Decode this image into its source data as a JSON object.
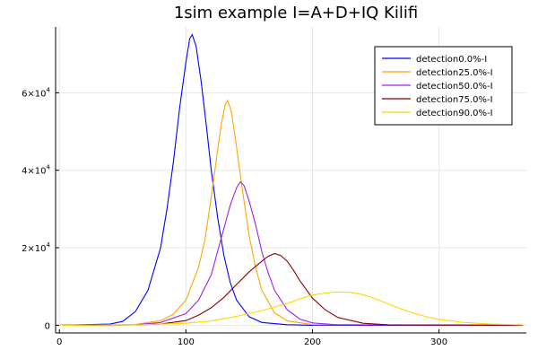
{
  "chart_data": {
    "type": "line",
    "title": "1sim example I=A+D+IQ Kilifi",
    "xlabel": "",
    "ylabel": "",
    "xlim": [
      -3,
      369
    ],
    "ylim": [
      -2000,
      77000
    ],
    "x_ticks": [
      0,
      100,
      200,
      300
    ],
    "y_ticks": [
      {
        "value": 0,
        "label": "0",
        "exp": ""
      },
      {
        "value": 20000,
        "label": "2×10",
        "exp": "4"
      },
      {
        "value": 40000,
        "label": "4×10",
        "exp": "4"
      },
      {
        "value": 60000,
        "label": "6×10",
        "exp": "4"
      }
    ],
    "grid": true,
    "legend_position": "top-right",
    "series": [
      {
        "name": "detection0.0%-I",
        "color": "#0000ff",
        "points": [
          [
            1,
            0
          ],
          [
            40,
            300
          ],
          [
            50,
            1000
          ],
          [
            60,
            3500
          ],
          [
            70,
            9000
          ],
          [
            80,
            20000
          ],
          [
            85,
            30000
          ],
          [
            90,
            42000
          ],
          [
            95,
            56000
          ],
          [
            100,
            68000
          ],
          [
            103,
            74000
          ],
          [
            105,
            75000
          ],
          [
            108,
            72000
          ],
          [
            112,
            63000
          ],
          [
            116,
            52000
          ],
          [
            120,
            40000
          ],
          [
            125,
            28000
          ],
          [
            130,
            18000
          ],
          [
            135,
            11000
          ],
          [
            140,
            6500
          ],
          [
            150,
            2200
          ],
          [
            160,
            700
          ],
          [
            180,
            120
          ],
          [
            200,
            0
          ],
          [
            366,
            0
          ]
        ]
      },
      {
        "name": "detection25.0%-I",
        "color": "#ffa500",
        "points": [
          [
            1,
            0
          ],
          [
            60,
            200
          ],
          [
            80,
            1200
          ],
          [
            90,
            2800
          ],
          [
            100,
            6500
          ],
          [
            110,
            15000
          ],
          [
            115,
            22000
          ],
          [
            120,
            33000
          ],
          [
            125,
            45000
          ],
          [
            128,
            52000
          ],
          [
            131,
            57000
          ],
          [
            133,
            58000
          ],
          [
            136,
            55000
          ],
          [
            140,
            46000
          ],
          [
            145,
            34000
          ],
          [
            150,
            23000
          ],
          [
            155,
            15000
          ],
          [
            160,
            9000
          ],
          [
            170,
            3200
          ],
          [
            180,
            1100
          ],
          [
            200,
            150
          ],
          [
            366,
            0
          ]
        ]
      },
      {
        "name": "detection50.0%-I",
        "color": "#a020f0",
        "points": [
          [
            1,
            0
          ],
          [
            60,
            100
          ],
          [
            80,
            700
          ],
          [
            100,
            3000
          ],
          [
            110,
            6500
          ],
          [
            120,
            13000
          ],
          [
            125,
            19000
          ],
          [
            130,
            25000
          ],
          [
            135,
            31000
          ],
          [
            140,
            35500
          ],
          [
            143,
            37000
          ],
          [
            146,
            36000
          ],
          [
            150,
            32000
          ],
          [
            155,
            26000
          ],
          [
            160,
            19000
          ],
          [
            165,
            13500
          ],
          [
            170,
            9000
          ],
          [
            180,
            4000
          ],
          [
            190,
            1600
          ],
          [
            200,
            600
          ],
          [
            220,
            100
          ],
          [
            366,
            0
          ]
        ]
      },
      {
        "name": "detection75.0%-I",
        "color": "#8b0000",
        "points": [
          [
            1,
            0
          ],
          [
            60,
            100
          ],
          [
            80,
            300
          ],
          [
            100,
            1200
          ],
          [
            110,
            2600
          ],
          [
            120,
            4500
          ],
          [
            130,
            7200
          ],
          [
            140,
            10500
          ],
          [
            150,
            13800
          ],
          [
            160,
            16500
          ],
          [
            165,
            17800
          ],
          [
            170,
            18500
          ],
          [
            175,
            18000
          ],
          [
            180,
            16500
          ],
          [
            185,
            14200
          ],
          [
            190,
            11500
          ],
          [
            200,
            7000
          ],
          [
            210,
            4000
          ],
          [
            220,
            2000
          ],
          [
            240,
            500
          ],
          [
            260,
            100
          ],
          [
            366,
            0
          ]
        ]
      },
      {
        "name": "detection90.0%-I",
        "color": "#ffd700",
        "points": [
          [
            1,
            0
          ],
          [
            60,
            100
          ],
          [
            100,
            500
          ],
          [
            120,
            1100
          ],
          [
            140,
            2300
          ],
          [
            160,
            3800
          ],
          [
            180,
            5600
          ],
          [
            190,
            6800
          ],
          [
            200,
            7800
          ],
          [
            210,
            8300
          ],
          [
            220,
            8600
          ],
          [
            230,
            8500
          ],
          [
            240,
            7900
          ],
          [
            250,
            6800
          ],
          [
            260,
            5500
          ],
          [
            270,
            4200
          ],
          [
            280,
            3100
          ],
          [
            290,
            2200
          ],
          [
            300,
            1500
          ],
          [
            320,
            700
          ],
          [
            340,
            300
          ],
          [
            366,
            100
          ]
        ]
      }
    ]
  }
}
